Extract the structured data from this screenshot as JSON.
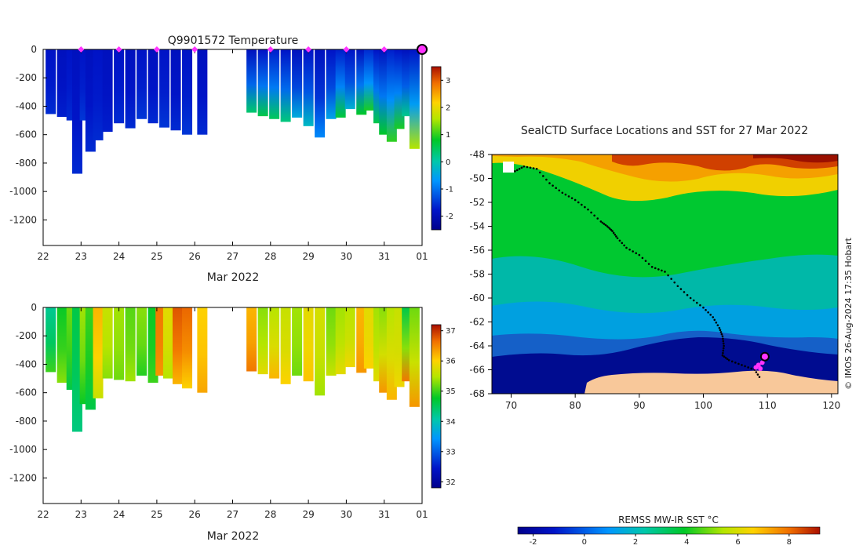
{
  "chart_data": [
    {
      "type": "heatmap",
      "id": "temperature",
      "title": "Q9901572  Temperature",
      "xlabel": "Mar 2022",
      "x_ticks": [
        "22",
        "23",
        "24",
        "25",
        "26",
        "27",
        "28",
        "29",
        "30",
        "31",
        "01"
      ],
      "x_range": [
        22,
        32
      ],
      "y_ticks": [
        "0",
        "-200",
        "-400",
        "-600",
        "-800",
        "-1000",
        "-1200"
      ],
      "y_range": [
        -1380,
        0
      ],
      "colorbar": {
        "ticks": [
          "3",
          "2",
          "1",
          "0",
          "-1",
          "-2"
        ],
        "range": [
          -2.5,
          3.5
        ]
      },
      "profile_markers_days": [
        23,
        24,
        25,
        26,
        28,
        29,
        30,
        31
      ],
      "latest_profile_day": 32,
      "profiles": [
        {
          "day": 22.2,
          "depth": 455,
          "top": -1.8,
          "bottom": -1.6
        },
        {
          "day": 22.5,
          "depth": 475,
          "top": -1.9,
          "bottom": -1.7
        },
        {
          "day": 22.75,
          "depth": 500,
          "top": -1.8,
          "bottom": -1.6
        },
        {
          "day": 22.9,
          "depth": 875,
          "top": -1.9,
          "bottom": -1.6
        },
        {
          "day": 23.1,
          "depth": 500,
          "top": -1.8,
          "bottom": -1.5
        },
        {
          "day": 23.25,
          "depth": 720,
          "top": -1.9,
          "bottom": -1.6
        },
        {
          "day": 23.45,
          "depth": 640,
          "top": -1.8,
          "bottom": -1.6
        },
        {
          "day": 23.7,
          "depth": 580,
          "top": -1.9,
          "bottom": -1.7
        },
        {
          "day": 24.0,
          "depth": 520,
          "top": -1.8,
          "bottom": -1.6
        },
        {
          "day": 24.3,
          "depth": 555,
          "top": -1.9,
          "bottom": -1.6
        },
        {
          "day": 24.6,
          "depth": 490,
          "top": -1.8,
          "bottom": -1.5
        },
        {
          "day": 24.9,
          "depth": 520,
          "top": -1.9,
          "bottom": -1.6
        },
        {
          "day": 25.2,
          "depth": 550,
          "top": -1.8,
          "bottom": -1.5
        },
        {
          "day": 25.5,
          "depth": 570,
          "top": -1.9,
          "bottom": -1.6
        },
        {
          "day": 25.8,
          "depth": 600,
          "top": -1.8,
          "bottom": -1.5
        },
        {
          "day": 26.2,
          "depth": 600,
          "top": -1.9,
          "bottom": -1.6
        },
        {
          "day": 27.5,
          "depth": 445,
          "top": -1.9,
          "bottom": 0.4
        },
        {
          "day": 27.8,
          "depth": 470,
          "top": -1.8,
          "bottom": 0.6
        },
        {
          "day": 28.1,
          "depth": 490,
          "top": -1.7,
          "bottom": 0.5
        },
        {
          "day": 28.4,
          "depth": 510,
          "top": -1.8,
          "bottom": 0.3
        },
        {
          "day": 28.7,
          "depth": 480,
          "top": -1.9,
          "bottom": -0.4
        },
        {
          "day": 29.0,
          "depth": 540,
          "top": -1.8,
          "bottom": -0.2
        },
        {
          "day": 29.3,
          "depth": 620,
          "top": -1.9,
          "bottom": -0.8
        },
        {
          "day": 29.6,
          "depth": 490,
          "top": -1.8,
          "bottom": -0.5
        },
        {
          "day": 29.85,
          "depth": 480,
          "top": -1.7,
          "bottom": 0.7
        },
        {
          "day": 30.1,
          "depth": 420,
          "top": -1.8,
          "bottom": -0.3
        },
        {
          "day": 30.4,
          "depth": 460,
          "top": -1.9,
          "bottom": 0.8
        },
        {
          "day": 30.6,
          "depth": 430,
          "top": -1.6,
          "bottom": 0.9
        },
        {
          "day": 30.85,
          "depth": 520,
          "top": -1.8,
          "bottom": 0.6
        },
        {
          "day": 31.0,
          "depth": 600,
          "top": -1.9,
          "bottom": 0.8
        },
        {
          "day": 31.2,
          "depth": 650,
          "top": -1.7,
          "bottom": 1.0
        },
        {
          "day": 31.4,
          "depth": 560,
          "top": -1.8,
          "bottom": 0.9
        },
        {
          "day": 31.6,
          "depth": 470,
          "top": -1.9,
          "bottom": 0.2
        },
        {
          "day": 31.8,
          "depth": 700,
          "top": -1.8,
          "bottom": 1.6
        }
      ]
    },
    {
      "type": "heatmap",
      "id": "salinity",
      "title": "",
      "xlabel": "Mar 2022",
      "x_ticks": [
        "22",
        "23",
        "24",
        "25",
        "26",
        "27",
        "28",
        "29",
        "30",
        "31",
        "01"
      ],
      "x_range": [
        22,
        32
      ],
      "y_ticks": [
        "0",
        "-200",
        "-400",
        "-600",
        "-800",
        "-1000",
        "-1200"
      ],
      "y_range": [
        -1380,
        0
      ],
      "colorbar": {
        "ticks": [
          "37",
          "36",
          "35",
          "34",
          "33",
          "32"
        ],
        "range": [
          31.8,
          37.2
        ]
      },
      "profiles": [
        {
          "day": 22.2,
          "depth": 455,
          "top": 34.2,
          "bottom": 35.0
        },
        {
          "day": 22.5,
          "depth": 530,
          "top": 34.8,
          "bottom": 35.3
        },
        {
          "day": 22.75,
          "depth": 580,
          "top": 35.2,
          "bottom": 34.6
        },
        {
          "day": 22.9,
          "depth": 875,
          "top": 34.6,
          "bottom": 34.3
        },
        {
          "day": 23.1,
          "depth": 680,
          "top": 35.4,
          "bottom": 34.8
        },
        {
          "day": 23.25,
          "depth": 720,
          "top": 35.0,
          "bottom": 34.6
        },
        {
          "day": 23.45,
          "depth": 640,
          "top": 36.2,
          "bottom": 35.6
        },
        {
          "day": 23.7,
          "depth": 500,
          "top": 35.6,
          "bottom": 35.3
        },
        {
          "day": 24.0,
          "depth": 510,
          "top": 35.4,
          "bottom": 35.2
        },
        {
          "day": 24.3,
          "depth": 520,
          "top": 35.1,
          "bottom": 35.4
        },
        {
          "day": 24.6,
          "depth": 480,
          "top": 35.3,
          "bottom": 34.9
        },
        {
          "day": 24.9,
          "depth": 530,
          "top": 34.8,
          "bottom": 35.0
        },
        {
          "day": 25.1,
          "depth": 480,
          "top": 36.6,
          "bottom": 36.4
        },
        {
          "day": 25.3,
          "depth": 500,
          "top": 35.8,
          "bottom": 35.5
        },
        {
          "day": 25.55,
          "depth": 540,
          "top": 36.8,
          "bottom": 36.2
        },
        {
          "day": 25.8,
          "depth": 570,
          "top": 36.7,
          "bottom": 36.0
        },
        {
          "day": 26.2,
          "depth": 600,
          "top": 36.0,
          "bottom": 36.3
        },
        {
          "day": 27.5,
          "depth": 450,
          "top": 36.2,
          "bottom": 36.6
        },
        {
          "day": 27.8,
          "depth": 470,
          "top": 35.3,
          "bottom": 35.8
        },
        {
          "day": 28.1,
          "depth": 500,
          "top": 35.5,
          "bottom": 36.2
        },
        {
          "day": 28.4,
          "depth": 540,
          "top": 35.6,
          "bottom": 36.0
        },
        {
          "day": 28.7,
          "depth": 480,
          "top": 35.4,
          "bottom": 35.2
        },
        {
          "day": 29.0,
          "depth": 520,
          "top": 35.8,
          "bottom": 36.1
        },
        {
          "day": 29.3,
          "depth": 620,
          "top": 35.7,
          "bottom": 35.4
        },
        {
          "day": 29.6,
          "depth": 480,
          "top": 35.2,
          "bottom": 35.6
        },
        {
          "day": 29.85,
          "depth": 470,
          "top": 35.4,
          "bottom": 35.8
        },
        {
          "day": 30.1,
          "depth": 420,
          "top": 35.5,
          "bottom": 35.9
        },
        {
          "day": 30.4,
          "depth": 460,
          "top": 36.2,
          "bottom": 36.4
        },
        {
          "day": 30.6,
          "depth": 430,
          "top": 35.8,
          "bottom": 36.0
        },
        {
          "day": 30.85,
          "depth": 520,
          "top": 35.4,
          "bottom": 35.8
        },
        {
          "day": 31.0,
          "depth": 600,
          "top": 35.3,
          "bottom": 36.4
        },
        {
          "day": 31.2,
          "depth": 650,
          "top": 35.5,
          "bottom": 36.2
        },
        {
          "day": 31.4,
          "depth": 560,
          "top": 35.6,
          "bottom": 35.9
        },
        {
          "day": 31.6,
          "depth": 520,
          "top": 34.6,
          "bottom": 36.6
        },
        {
          "day": 31.8,
          "depth": 700,
          "top": 35.2,
          "bottom": 36.4
        }
      ]
    },
    {
      "type": "heatmap",
      "id": "sst_map",
      "title": "SealCTD Surface Locations and SST for 27 Mar 2022",
      "x_ticks": [
        "70",
        "80",
        "90",
        "100",
        "110",
        "120"
      ],
      "x_range": [
        67,
        121
      ],
      "y_ticks": [
        "-48",
        "-50",
        "-52",
        "-54",
        "-56",
        "-58",
        "-60",
        "-62",
        "-64",
        "-66",
        "-68"
      ],
      "y_range": [
        -68,
        -48
      ],
      "colorbar": {
        "label": "REMSS MW-IR SST °C",
        "ticks": [
          "-2",
          "0",
          "2",
          "4",
          "6",
          "8"
        ],
        "range": [
          -2.6,
          9.2
        ]
      },
      "track_lon_lat": [
        [
          70.6,
          -49.4
        ],
        [
          72.0,
          -49.0
        ],
        [
          74.0,
          -49.2
        ],
        [
          76.0,
          -50.4
        ],
        [
          78.0,
          -51.2
        ],
        [
          80.0,
          -51.8
        ],
        [
          82.0,
          -52.6
        ],
        [
          84.0,
          -53.6
        ],
        [
          85.0,
          -54.0
        ],
        [
          85.8,
          -54.4
        ],
        [
          86.6,
          -55.0
        ],
        [
          88.0,
          -55.8
        ],
        [
          90.0,
          -56.4
        ],
        [
          92.0,
          -57.4
        ],
        [
          94.0,
          -57.8
        ],
        [
          96.0,
          -59.0
        ],
        [
          98.0,
          -60.0
        ],
        [
          100.0,
          -60.8
        ],
        [
          101.5,
          -61.6
        ],
        [
          102.5,
          -62.5
        ],
        [
          103.0,
          -63.2
        ],
        [
          103.2,
          -64.0
        ],
        [
          103.0,
          -64.8
        ],
        [
          104.0,
          -65.2
        ],
        [
          106.0,
          -65.6
        ],
        [
          108.0,
          -66.0
        ],
        [
          109.0,
          -66.8
        ]
      ],
      "recent_positions": [
        [
          108.2,
          -65.8
        ],
        [
          108.6,
          -65.6
        ],
        [
          108.9,
          -65.9
        ],
        [
          109.2,
          -65.4
        ]
      ],
      "latest_position": [
        109.6,
        -64.9
      ],
      "credit": "© IMOS 26-Aug-2024 17:35 Hobart"
    }
  ]
}
